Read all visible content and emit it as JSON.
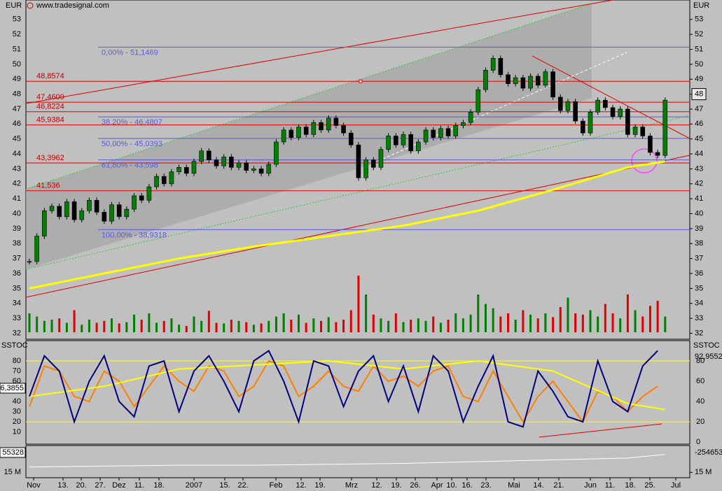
{
  "chart_data": {
    "type": "candlestick",
    "source": "www.tradesignal.com",
    "currency_label": "EUR",
    "close": [
      36.8,
      38.5,
      40.2,
      40.5,
      39.8,
      40.8,
      39.6,
      40.2,
      40.9,
      40.1,
      39.5,
      40.6,
      39.8,
      40.3,
      41.2,
      40.9,
      41.8,
      42.5,
      42.0,
      42.8,
      43.1,
      42.7,
      43.5,
      44.2,
      43.6,
      43.2,
      43.8,
      43.1,
      43.4,
      42.9,
      43.0,
      42.7,
      43.3,
      44.8,
      45.6,
      45.1,
      45.8,
      45.3,
      46.1,
      45.6,
      46.4,
      45.9,
      45.4,
      44.6,
      42.4,
      43.6,
      43.1,
      44.3,
      45.2,
      44.6,
      45.3,
      44.2,
      44.8,
      45.6,
      45.1,
      45.7,
      45.2,
      45.9,
      46.1,
      46.8,
      48.3,
      49.6,
      50.4,
      49.3,
      48.7,
      49.1,
      48.4,
      49.2,
      48.6,
      49.5,
      47.8,
      46.9,
      47.5,
      46.2,
      45.4,
      46.8,
      47.6,
      47.1,
      46.5,
      47.0,
      45.3,
      45.8,
      45.2,
      44.1,
      43.9,
      47.6
    ],
    "volume": [
      30,
      25,
      18,
      20,
      22,
      15,
      35,
      12,
      20,
      15,
      18,
      22,
      14,
      16,
      28,
      20,
      30,
      15,
      18,
      22,
      12,
      10,
      25,
      18,
      34,
      15,
      14,
      20,
      18,
      16,
      12,
      14,
      18,
      25,
      30,
      20,
      28,
      15,
      22,
      18,
      24,
      16,
      20,
      35,
      90,
      60,
      28,
      22,
      18,
      30,
      16,
      20,
      22,
      18,
      25,
      15,
      20,
      30,
      22,
      28,
      60,
      45,
      38,
      25,
      30,
      20,
      35,
      28,
      22,
      30,
      24,
      40,
      55,
      30,
      28,
      35,
      25,
      45,
      30,
      22,
      60,
      35,
      25,
      42,
      50,
      25
    ],
    "volume_lim": [
      0,
      100
    ],
    "ma200": {
      "x": [
        0,
        10,
        20,
        30,
        40,
        50,
        60,
        70,
        80,
        85
      ],
      "values": [
        35.0,
        36.0,
        37.0,
        37.8,
        38.5,
        39.2,
        40.2,
        41.6,
        43.1,
        43.5
      ],
      "color": "#ffff00"
    },
    "ylim": [
      31.6,
      54.3
    ],
    "yticks": [
      53,
      52,
      51,
      50,
      49,
      48,
      47,
      46,
      45,
      44,
      43,
      42,
      41,
      40,
      39,
      38,
      37,
      36,
      35,
      34,
      33,
      32
    ],
    "last_price": 48,
    "levels": [
      {
        "value": 48.8574,
        "label": "48,8574"
      },
      {
        "value": 47.4609,
        "label": "47,4609"
      },
      {
        "value": 46.8224,
        "label": "46,8224"
      },
      {
        "value": 45.9384,
        "label": "45,9384"
      },
      {
        "value": 43.3962,
        "label": "43,3962"
      },
      {
        "value": 41.536,
        "label": "41,536"
      }
    ],
    "fib_levels": [
      {
        "value": 51.1469,
        "label": "0,00% - 51,1469"
      },
      {
        "value": 46.4807,
        "label": "38,20% - 46,4807"
      },
      {
        "value": 45.0393,
        "label": "50,00% - 45,0393"
      },
      {
        "value": 43.598,
        "label": "61,80% - 43,598"
      },
      {
        "value": 38.9318,
        "label": "100,00% - 38,9318"
      }
    ],
    "stoch": {
      "name": "SSTOC",
      "ylim": [
        -2,
        100
      ],
      "yticks_left": [
        80,
        70,
        60,
        50,
        40,
        30,
        20,
        10
      ],
      "yticks_right": [
        80,
        60,
        40,
        20,
        0
      ],
      "x": [
        0,
        2,
        4,
        6,
        8,
        10,
        12,
        14,
        16,
        18,
        20,
        22,
        24,
        26,
        28,
        30,
        32,
        34,
        36,
        38,
        40,
        42,
        44,
        46,
        48,
        50,
        52,
        54,
        56,
        58,
        60,
        62,
        64,
        66,
        68,
        70,
        72,
        74,
        76,
        78,
        80,
        82,
        84
      ],
      "fast": [
        45,
        85,
        70,
        20,
        60,
        85,
        40,
        25,
        75,
        80,
        30,
        70,
        85,
        60,
        30,
        80,
        90,
        60,
        20,
        80,
        75,
        35,
        70,
        85,
        40,
        75,
        30,
        85,
        70,
        20,
        55,
        85,
        20,
        15,
        70,
        50,
        25,
        20,
        80,
        40,
        30,
        75,
        90
      ],
      "slow": [
        35,
        75,
        70,
        45,
        40,
        70,
        60,
        35,
        55,
        75,
        60,
        50,
        75,
        70,
        45,
        55,
        80,
        75,
        45,
        55,
        70,
        55,
        50,
        75,
        60,
        65,
        55,
        70,
        75,
        45,
        40,
        70,
        45,
        20,
        45,
        60,
        40,
        20,
        50,
        45,
        30,
        45,
        55
      ],
      "signal_x": [
        0,
        10,
        20,
        30,
        40,
        50,
        60,
        70,
        80,
        85
      ],
      "signal": [
        45,
        55,
        72,
        76,
        80,
        72,
        80,
        70,
        38,
        32
      ],
      "left_value_label": "6,3855",
      "right_value_label": "92,9552",
      "bands": [
        80,
        20
      ]
    },
    "lower": {
      "x": [
        0,
        10,
        20,
        30,
        40,
        50,
        60,
        70,
        80,
        85
      ],
      "values": [
        18,
        18.5,
        19,
        19,
        19.5,
        20,
        21,
        22,
        23,
        25
      ],
      "ylim": [
        12,
        30
      ],
      "tick": {
        "value": 15,
        "label": "15 M"
      },
      "left_value_label": "55328",
      "right_value_label": "-254653"
    },
    "dates": [
      "Nov",
      "13.",
      "20.",
      "27.",
      "Dez",
      "11.",
      "18.",
      "2007",
      "15.",
      "22.",
      "Feb",
      "12.",
      "19.",
      "Mrz",
      "12.",
      "19.",
      "26.",
      "Apr",
      "10.",
      "16.",
      "23.",
      "Mai",
      "14.",
      "21.",
      "Jun",
      "11.",
      "18.",
      "25.",
      "Jul"
    ]
  }
}
